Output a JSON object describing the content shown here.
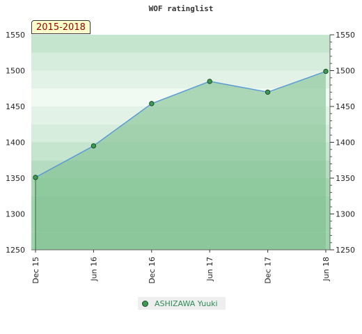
{
  "chart_data": {
    "type": "area",
    "title": "WOF ratinglist",
    "period_label": "2015-2018",
    "x": [
      "Dec 15",
      "Jun 16",
      "Dec 16",
      "Jun 17",
      "Dec 17",
      "Jun 18"
    ],
    "series": [
      {
        "name": "ASHIZAWA Yuuki",
        "values": [
          1351,
          1395,
          1454,
          1485,
          1470,
          1499
        ]
      }
    ],
    "y_ticks": [
      1250,
      1300,
      1350,
      1400,
      1450,
      1500,
      1550
    ],
    "ylim": [
      1250,
      1550
    ],
    "xlabel": "",
    "ylabel": "",
    "legend_position": "bottom-center",
    "grid": false,
    "colors": {
      "line": "#5b9bd5",
      "fill": "#7fbf8f",
      "marker": "#3c9a54",
      "badge_text": "#990000",
      "badge_bg": "#ffffcc"
    }
  }
}
